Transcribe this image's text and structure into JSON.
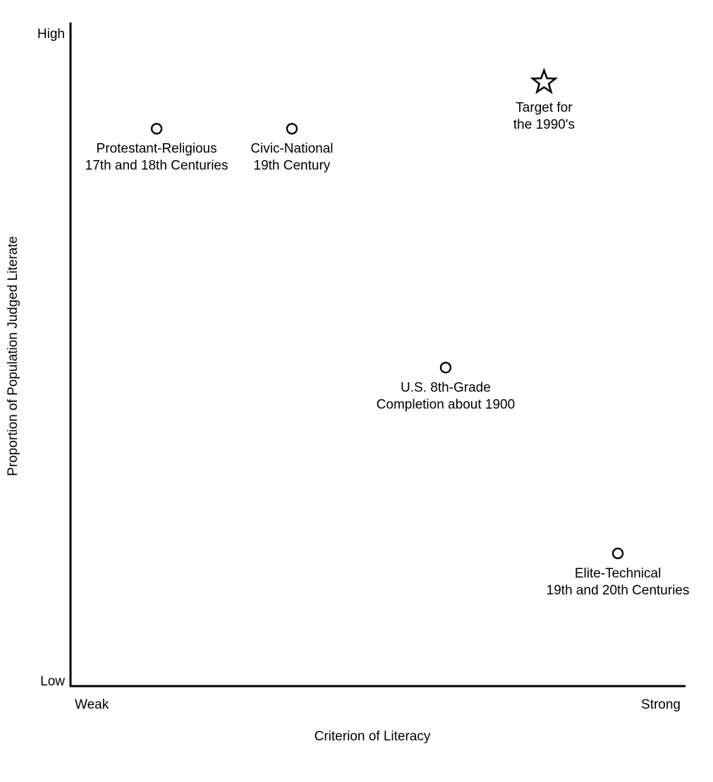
{
  "chart_data": {
    "type": "scatter",
    "xlabel": "Criterion of Literacy",
    "ylabel": "Proportion of Population Judged Literate",
    "x_ticks": {
      "low": "Weak",
      "high": "Strong"
    },
    "y_ticks": {
      "low": "Low",
      "high": "High"
    },
    "xlim": [
      0,
      100
    ],
    "ylim": [
      0,
      100
    ],
    "grid": false,
    "legend": "none",
    "points": [
      {
        "label": [
          "Protestant-Religious",
          "17th and 18th Centuries"
        ],
        "x": 14,
        "y": 84,
        "marker": "circle"
      },
      {
        "label": [
          "Civic-National",
          "19th Century"
        ],
        "x": 36,
        "y": 84,
        "marker": "circle"
      },
      {
        "label": [
          "U.S. 8th-Grade",
          "Completion about 1900"
        ],
        "x": 61,
        "y": 48,
        "marker": "circle"
      },
      {
        "label": [
          "Elite-Technical",
          "19th and 20th Centuries"
        ],
        "x": 89,
        "y": 20,
        "marker": "circle"
      },
      {
        "label": [
          "Target for",
          "the 1990's"
        ],
        "x": 77,
        "y": 91,
        "marker": "star"
      }
    ]
  }
}
